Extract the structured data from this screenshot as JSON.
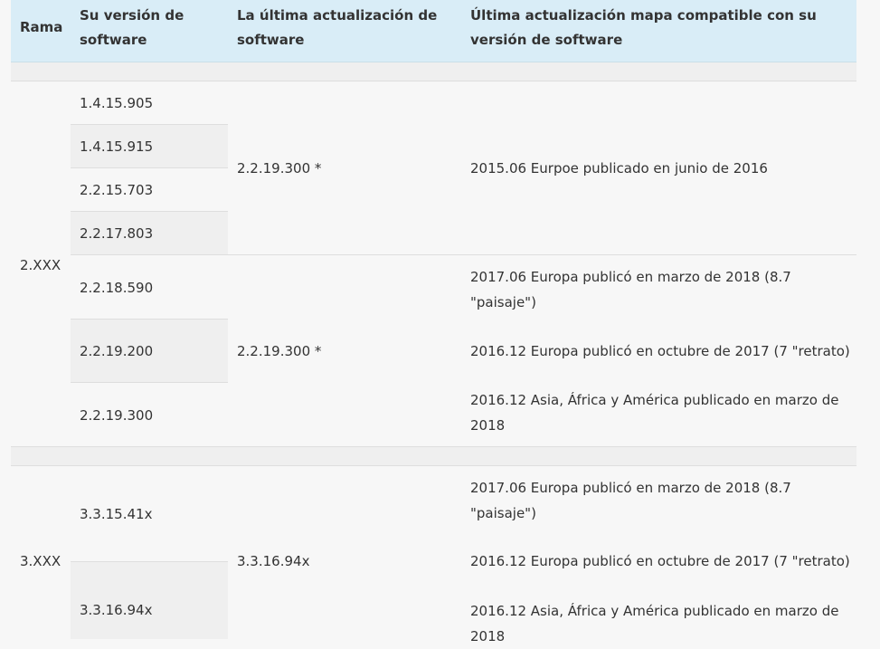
{
  "table": {
    "headers": {
      "branch": "Rama",
      "your_version": "Su versión de software",
      "latest_update": "La última actualización de software",
      "map_update": "Última actualización mapa compatible con su versión de software"
    },
    "groups": [
      {
        "branch": "2.XXX",
        "subgroups": [
          {
            "versions": [
              "1.4.15.905",
              "1.4.15.915",
              "2.2.15.703",
              "2.2.17.803"
            ],
            "latest": "2.2.19.300 *",
            "maps": [
              "2015.06 Eurpoe publicado en junio de 2016"
            ]
          },
          {
            "versions": [
              "2.2.18.590",
              "2.2.19.200",
              "2.2.19.300"
            ],
            "latest": "2.2.19.300 *",
            "maps": [
              "2017.06 Europa publicó en marzo de 2018 (8.7 \"paisaje\")",
              "2016.12 Europa publicó en octubre de 2017 (7 \"retrato)",
              "2016.12 Asia, África y América publicado en marzo de 2018"
            ]
          }
        ]
      },
      {
        "branch": "3.XXX",
        "subgroups": [
          {
            "versions": [
              "3.3.15.41x",
              "3.3.16.94x"
            ],
            "latest": "3.3.16.94x",
            "maps": [
              "2017.06 Europa publicó en marzo de 2018 (8.7 \"paisaje\")",
              "2016.12 Europa publicó en octubre de 2017 (7 \"retrato)",
              "2016.12 Asia, África y América publicado en marzo de 2018"
            ]
          }
        ]
      }
    ]
  }
}
